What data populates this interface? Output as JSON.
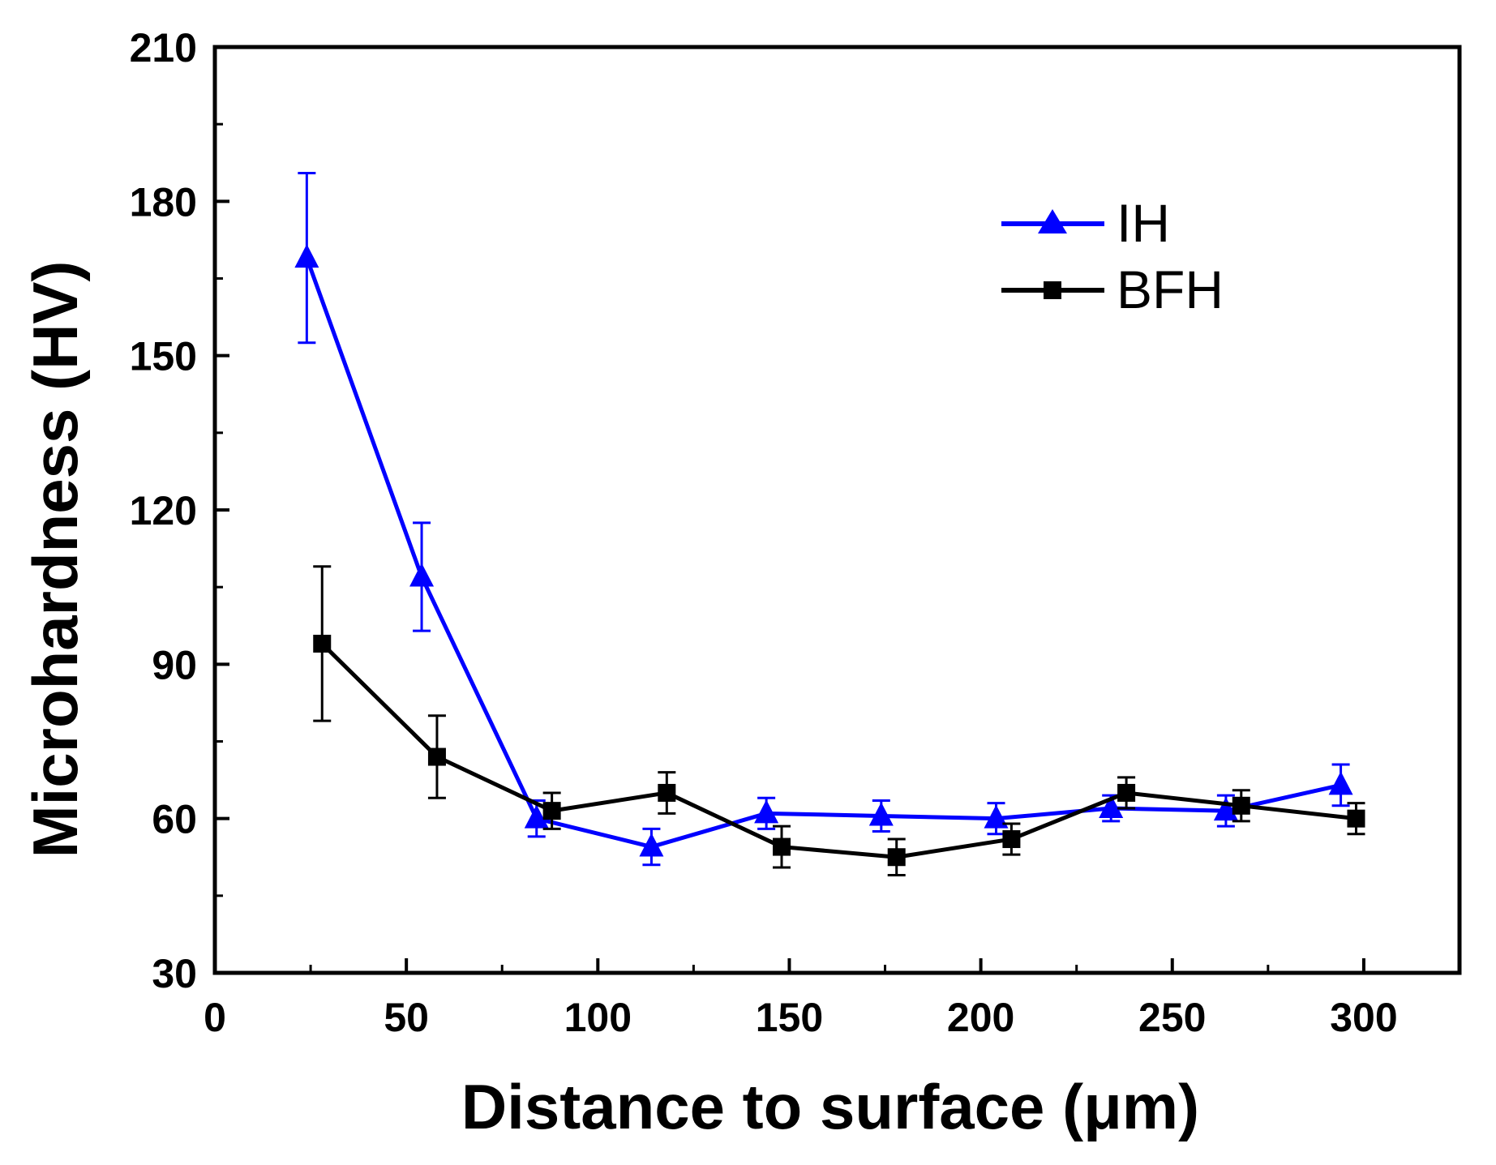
{
  "chart_data": {
    "type": "line",
    "title": "",
    "xlabel": "Distance to surface (μm)",
    "ylabel": "Microhardness (HV)",
    "xlim": [
      0,
      325
    ],
    "ylim": [
      30,
      210
    ],
    "xticks": [
      0,
      50,
      100,
      150,
      200,
      250,
      300
    ],
    "yticks": [
      30,
      60,
      90,
      120,
      150,
      180,
      210
    ],
    "legend_position": "top-right",
    "series": [
      {
        "name": "IH",
        "color": "#0000ff",
        "marker": "triangle",
        "x": [
          24,
          54,
          84,
          114,
          144,
          174,
          204,
          234,
          264,
          294
        ],
        "y": [
          169,
          107,
          60,
          54.5,
          61,
          60.5,
          60,
          62,
          61.5,
          66.5
        ],
        "err": [
          16.5,
          10.5,
          3.5,
          3.5,
          3,
          3,
          3,
          2.5,
          3,
          4
        ]
      },
      {
        "name": "BFH",
        "color": "#000000",
        "marker": "square",
        "x": [
          28,
          58,
          88,
          118,
          148,
          178,
          208,
          238,
          268,
          298
        ],
        "y": [
          94,
          72,
          61.5,
          65,
          54.5,
          52.5,
          56,
          65,
          62.5,
          60
        ],
        "err": [
          15,
          8,
          3.5,
          4,
          4,
          3.5,
          3,
          3,
          3,
          3
        ]
      }
    ]
  }
}
